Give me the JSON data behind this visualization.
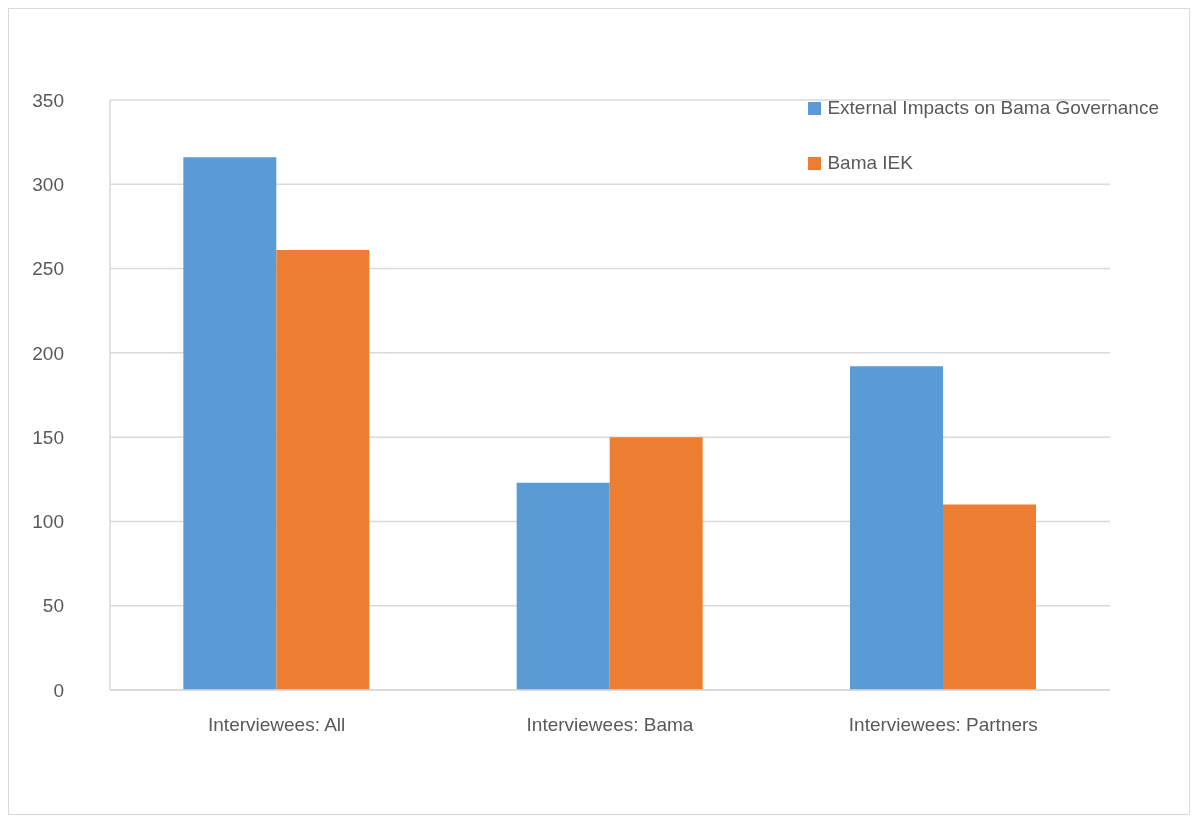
{
  "chart_data": {
    "type": "bar",
    "categories": [
      "Interviewees: All",
      "Interviewees: Bama",
      "Interviewees: Partners"
    ],
    "series": [
      {
        "name": "External Impacts on Bama Governance",
        "color": "#5b9bd5",
        "values": [
          316,
          123,
          192
        ]
      },
      {
        "name": "Bama IEK",
        "color": "#ed7d31",
        "values": [
          261,
          150,
          110
        ]
      }
    ],
    "ylim": [
      0,
      350
    ],
    "yticks": [
      0,
      50,
      100,
      150,
      200,
      250,
      300,
      350
    ],
    "grid": "y",
    "legend": "top right"
  }
}
